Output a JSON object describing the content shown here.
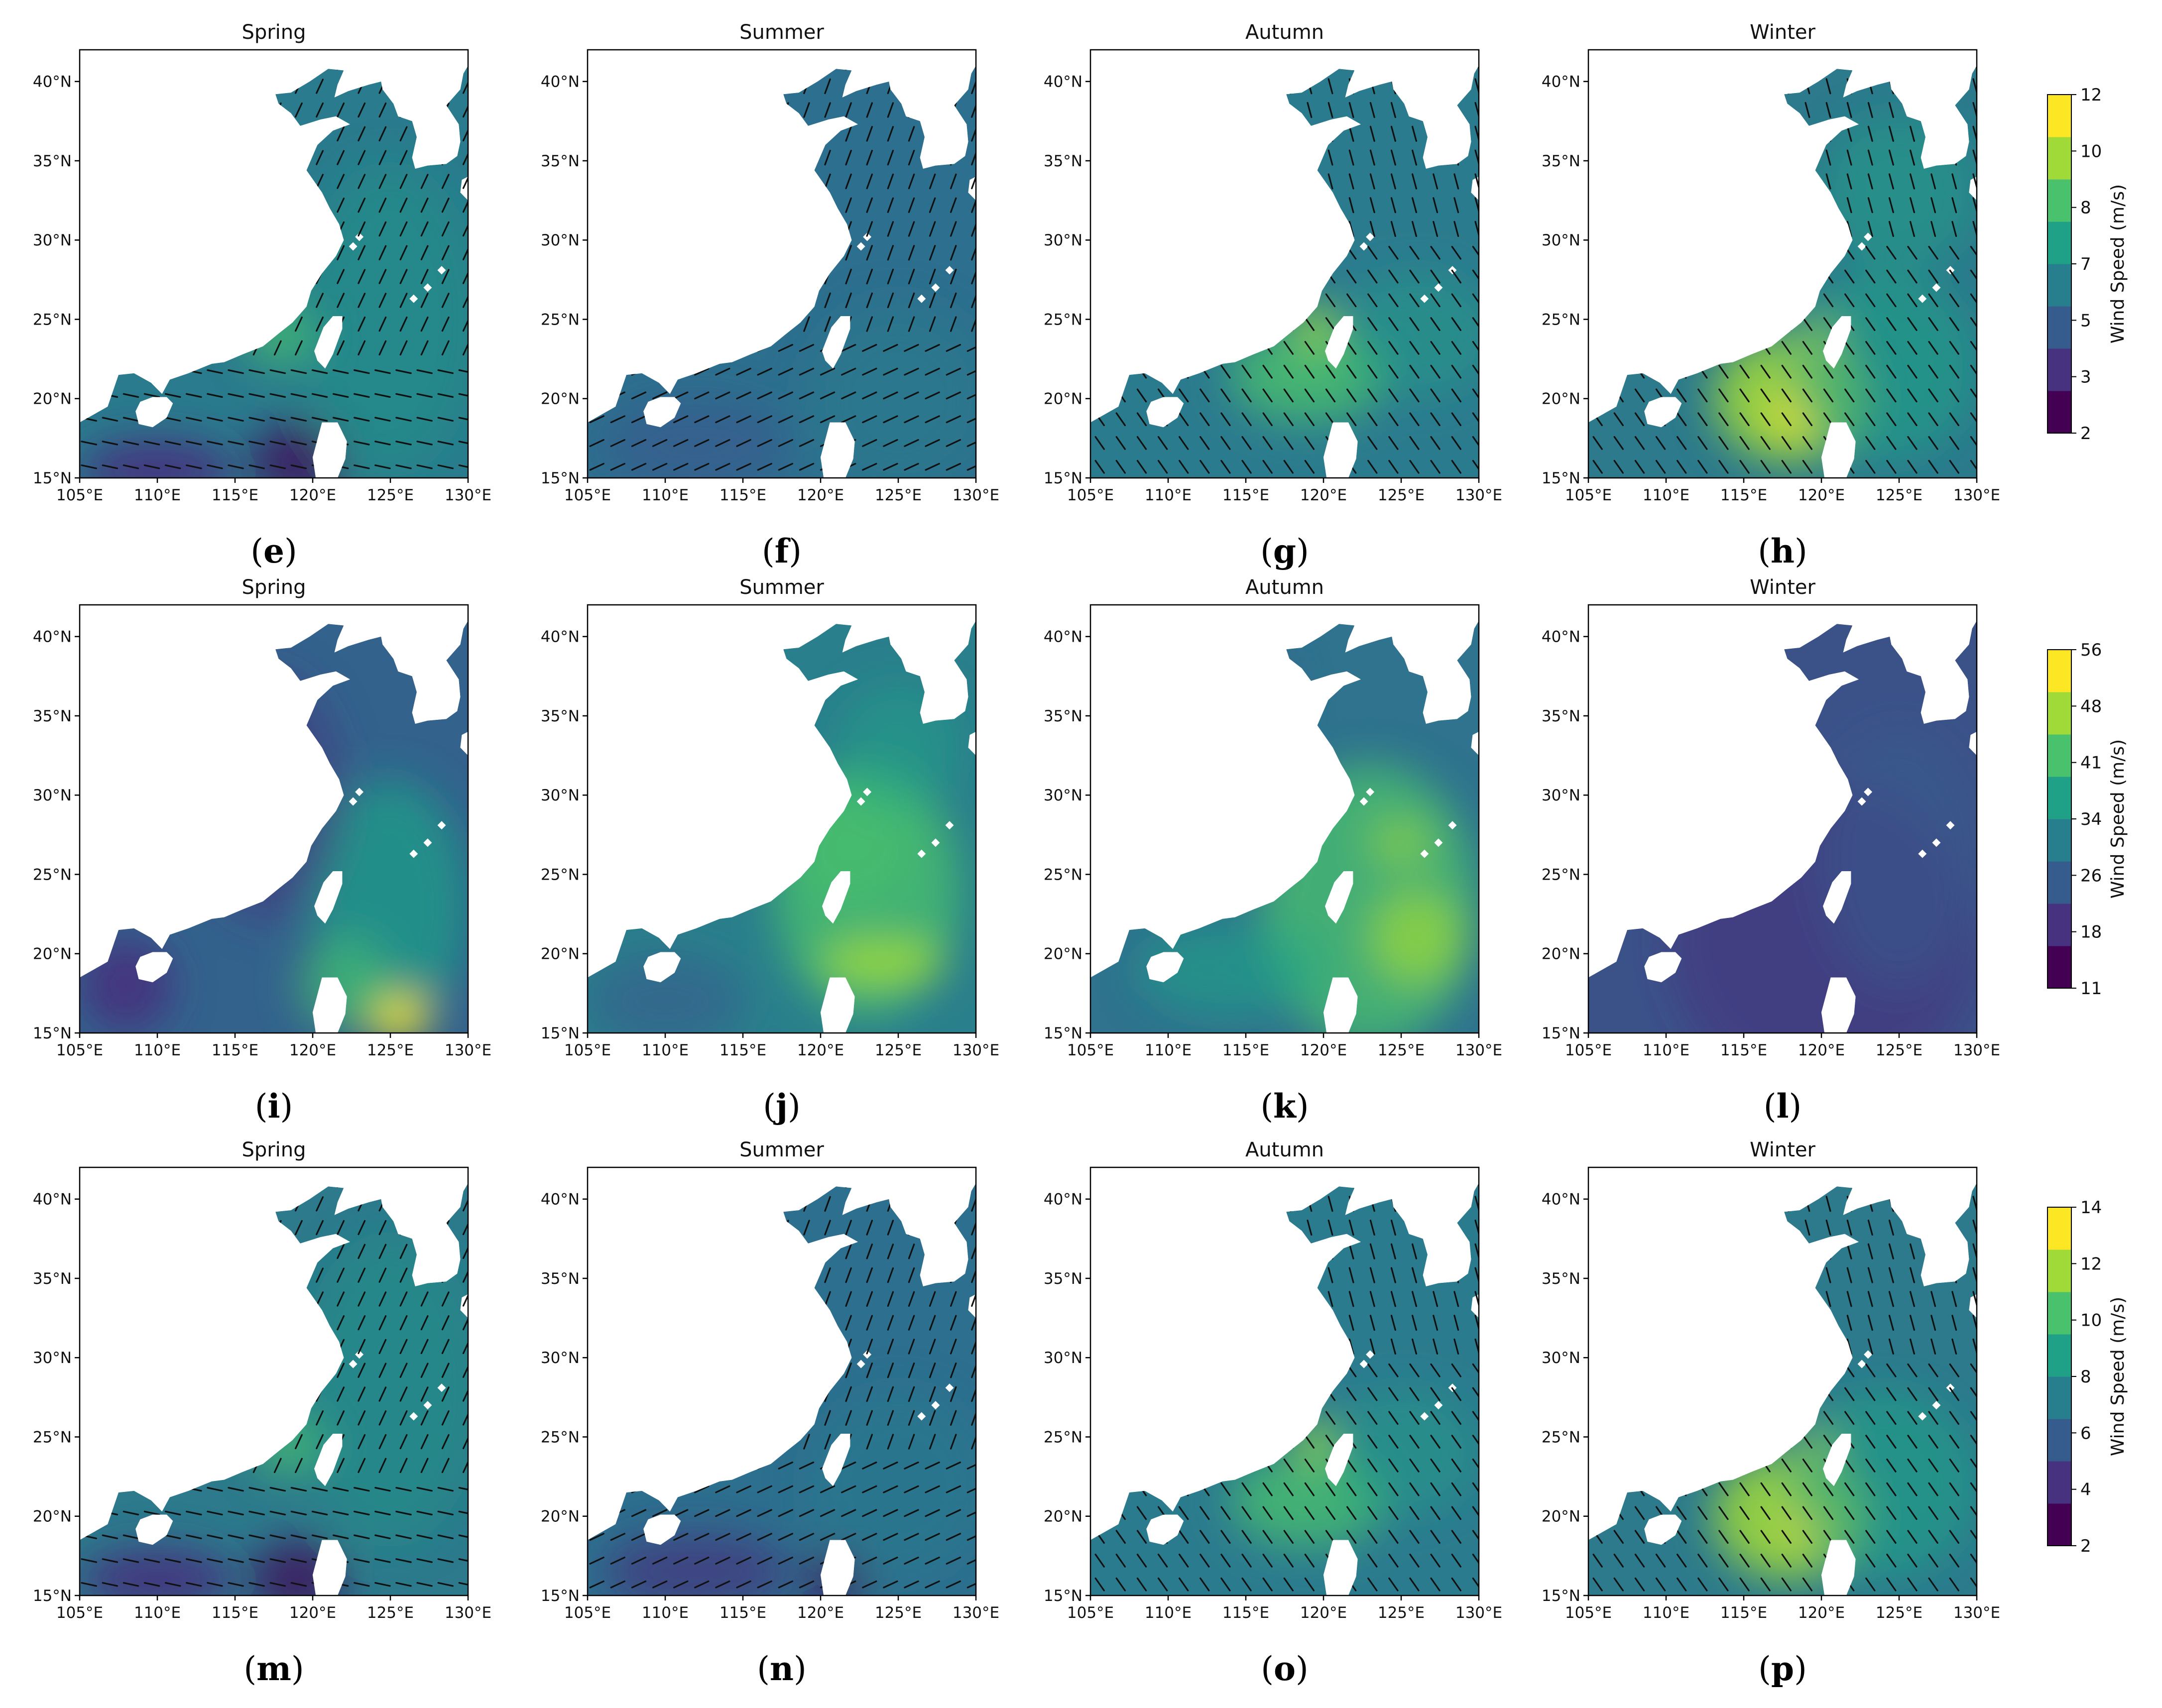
{
  "rows": [
    {
      "colorbar": {
        "ticks": [
          "2",
          "3",
          "5",
          "7",
          "8",
          "10",
          "12"
        ],
        "label": "Wind Speed (m/s)"
      },
      "panels": [
        {
          "title": "Spring",
          "letter": "e",
          "vectors": true
        },
        {
          "title": "Summer",
          "letter": "f",
          "vectors": true
        },
        {
          "title": "Autumn",
          "letter": "g",
          "vectors": true
        },
        {
          "title": "Winter",
          "letter": "h",
          "vectors": true
        }
      ]
    },
    {
      "colorbar": {
        "ticks": [
          "11",
          "18",
          "26",
          "34",
          "41",
          "48",
          "56"
        ],
        "label": "Wind Speed (m/s)"
      },
      "panels": [
        {
          "title": "Spring",
          "letter": "i",
          "vectors": false
        },
        {
          "title": "Summer",
          "letter": "j",
          "vectors": false
        },
        {
          "title": "Autumn",
          "letter": "k",
          "vectors": false
        },
        {
          "title": "Winter",
          "letter": "l",
          "vectors": false
        }
      ]
    },
    {
      "colorbar": {
        "ticks": [
          "2",
          "4",
          "6",
          "8",
          "10",
          "12",
          "14"
        ],
        "label": "Wind Speed (m/s)"
      },
      "panels": [
        {
          "title": "Spring",
          "letter": "m",
          "vectors": true
        },
        {
          "title": "Summer",
          "letter": "n",
          "vectors": true
        },
        {
          "title": "Autumn",
          "letter": "o",
          "vectors": true
        },
        {
          "title": "Winter",
          "letter": "p",
          "vectors": true
        }
      ]
    }
  ],
  "axes": {
    "x_ticks": [
      "105°E",
      "110°E",
      "115°E",
      "120°E",
      "125°E",
      "130°E"
    ],
    "y_ticks": [
      "15°N",
      "20°N",
      "25°N",
      "30°N",
      "35°N",
      "40°N"
    ]
  },
  "colors": {
    "viridis": [
      "#440154",
      "#46327e",
      "#365c8d",
      "#277f8e",
      "#1fa187",
      "#4ac16d",
      "#a0da39",
      "#fde725"
    ],
    "land": "#ffffff",
    "ocean_base": "#2c7a8c",
    "vector": "#111111"
  }
}
